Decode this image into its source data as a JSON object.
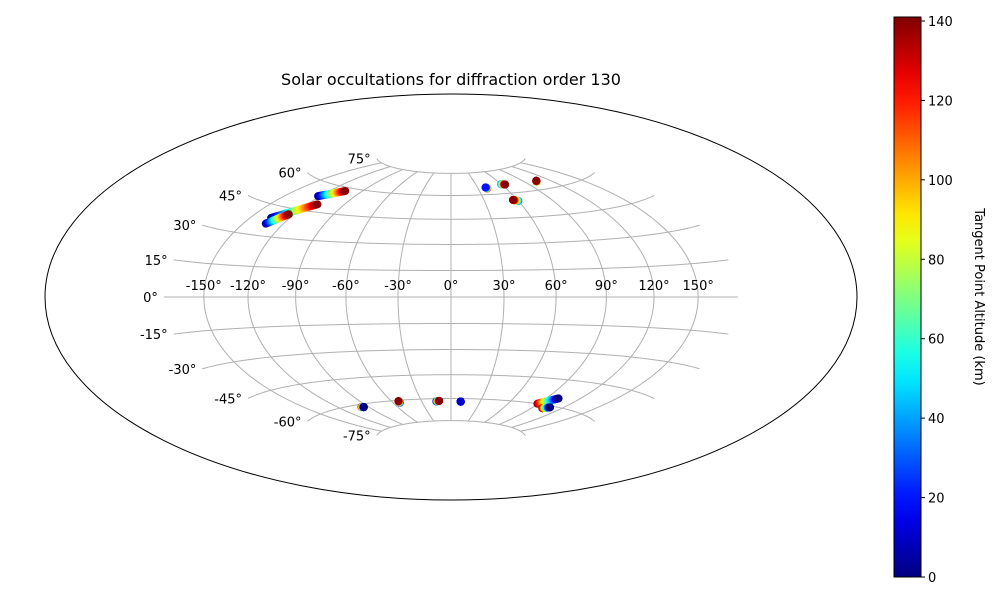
{
  "chart_data": {
    "type": "scatter",
    "projection": "hammer",
    "title": "Solar occultations for diffraction order 130",
    "longitude_ticks": [
      -150,
      -120,
      -90,
      -60,
      -30,
      0,
      30,
      60,
      90,
      120,
      150
    ],
    "longitude_tick_labels": [
      "-150°",
      "-120°",
      "-90°",
      "-60°",
      "-30°",
      "0°",
      "30°",
      "60°",
      "90°",
      "120°",
      "150°"
    ],
    "latitude_ticks": [
      -75,
      -60,
      -45,
      -30,
      -15,
      0,
      15,
      30,
      45,
      60,
      75
    ],
    "latitude_tick_labels": [
      "-75°",
      "-60°",
      "-45°",
      "-30°",
      "-15°",
      "0°",
      "15°",
      "30°",
      "45°",
      "60°",
      "75°"
    ],
    "grid": true,
    "colormap": "jet",
    "colorbar": {
      "label": "Tangent Point Altitude (km)",
      "range": [
        0,
        141
      ],
      "ticks": [
        0,
        20,
        40,
        60,
        80,
        100,
        120,
        140
      ],
      "tick_labels": [
        "0",
        "20",
        "40",
        "60",
        "80",
        "100",
        "120",
        "140"
      ]
    },
    "tracks": [
      {
        "lon_start": -134,
        "lat_start": 39,
        "lon_end": -112,
        "lat_end": 49,
        "alt_start": 0,
        "alt_end": 140
      },
      {
        "lon_start": -133,
        "lat_start": 36,
        "lon_end": -124,
        "lat_end": 42,
        "alt_start": 0,
        "alt_end": 140
      },
      {
        "lon_start": -122,
        "lat_start": 53,
        "lon_end": -106,
        "lat_end": 58,
        "alt_start": 0,
        "alt_end": 140
      },
      {
        "lon_start": 40,
        "lat_start": 64,
        "lon_end": 39,
        "lat_end": 64.7,
        "alt_start": 130,
        "alt_end": 20
      },
      {
        "lon_start": 60,
        "lat_start": 55,
        "lon_end": 56,
        "lat_end": 55.8,
        "alt_start": 30,
        "alt_end": 140
      },
      {
        "lon_start": 60,
        "lat_start": 66,
        "lon_end": 64,
        "lat_end": 65.6,
        "alt_start": 30,
        "alt_end": 140
      },
      {
        "lon_start": 103,
        "lat_start": 64.6,
        "lon_end": 105,
        "lat_end": 65.2,
        "alt_start": 60,
        "alt_end": 140
      },
      {
        "lon_start": -97,
        "lat_start": -61.5,
        "lon_end": -95,
        "lat_end": -61.8,
        "alt_start": 140,
        "alt_end": 0
      },
      {
        "lon_start": -53,
        "lat_start": -61.5,
        "lon_end": -53,
        "lat_end": -60.5,
        "alt_start": 0,
        "alt_end": 140
      },
      {
        "lon_start": -15,
        "lat_start": -61.8,
        "lon_end": -12,
        "lat_end": -61.5,
        "alt_start": 0,
        "alt_end": 140
      },
      {
        "lon_start": 10,
        "lat_start": -62,
        "lon_end": 10,
        "lat_end": -62,
        "alt_start": 10,
        "alt_end": 10
      },
      {
        "lon_start": 89,
        "lat_start": -60,
        "lon_end": 101,
        "lat_end": -55.5,
        "alt_start": 140,
        "alt_end": 0
      },
      {
        "lon_start": 101,
        "lat_start": -62,
        "lon_end": 107,
        "lat_end": -60.8,
        "alt_start": 140,
        "alt_end": 0
      }
    ]
  }
}
